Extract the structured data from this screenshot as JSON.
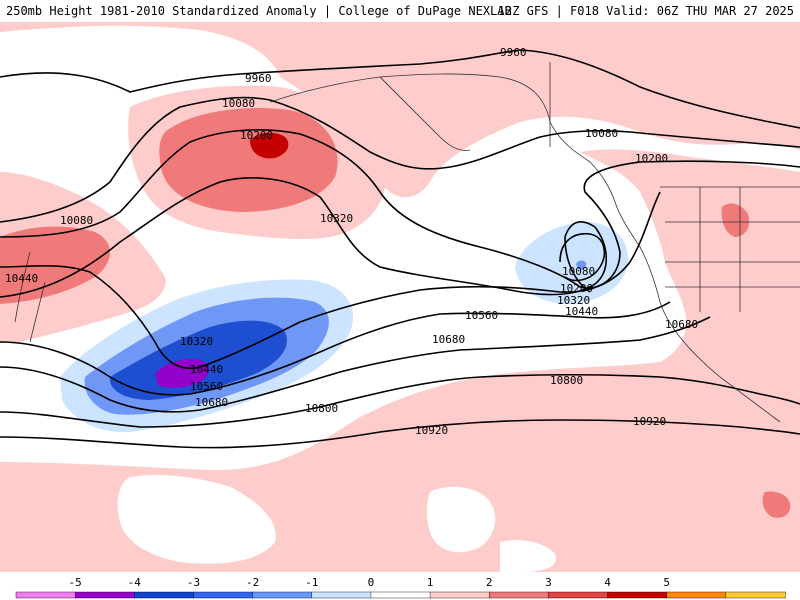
{
  "header": {
    "left_text": "250mb Height 1981-2010 Standardized Anomaly | College of DuPage NEXLAB",
    "right_text": "12Z GFS | F018 Valid: 06Z THU MAR 27 2025"
  },
  "contour_labels": {
    "c9960a": "9960",
    "c9960b": "9960",
    "c10080a": "10080",
    "c10080b": "10080",
    "c10080c": "10080",
    "c10080d": "10080",
    "c10200a": "10200",
    "c10200b": "10200",
    "c10200c": "10200",
    "c10320a": "10320",
    "c10320b": "10320",
    "c10320c": "10320",
    "c10440a": "10440",
    "c10440b": "10440",
    "c10440c": "10440",
    "c10560a": "10560",
    "c10560b": "10560",
    "c10680a": "10680",
    "c10680b": "10680",
    "c10680c": "10680",
    "c10800a": "10800",
    "c10800b": "10800",
    "c10920a": "10920",
    "c10920b": "10920"
  },
  "legend": {
    "ticks": [
      "-5",
      "-4",
      "-3",
      "-2",
      "-1",
      "0",
      "1",
      "2",
      "3",
      "4",
      "5"
    ],
    "colors": [
      "#f07ff0",
      "#9900cc",
      "#1144cc",
      "#3366ee",
      "#6699ff",
      "#cce4ff",
      "#ffffff",
      "#ffcccc",
      "#f07a7a",
      "#e04444",
      "#c40000",
      "#ff8800",
      "#ffcc33"
    ]
  },
  "colors": {
    "neg_light": "#cce4ff",
    "neg_mid": "#6f97f5",
    "neg_dark": "#1e4fd0",
    "neg_purple": "#9400cc",
    "pos_light": "#ffcccc",
    "pos_mid": "#f07a7a",
    "pos_dark": "#c40000"
  }
}
